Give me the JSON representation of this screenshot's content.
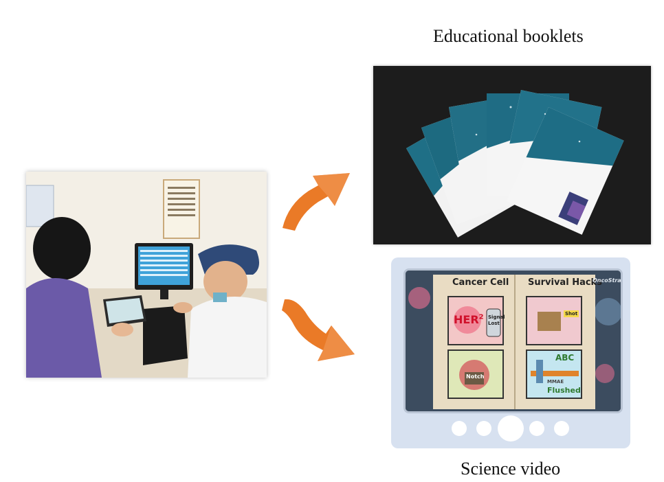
{
  "captions": {
    "booklets": "Educational booklets",
    "video": "Science video"
  },
  "video": {
    "left_page_title": "Cancer Cell",
    "right_page_title": "Survival Hacks",
    "panel_her": "HER",
    "panel_her_sup": "2",
    "panel_signal": "Signal",
    "panel_lost": "Lost",
    "panel_shot": "Shot",
    "panel_notch": "Notch",
    "panel_abc": "ABC",
    "panel_mmae": "MMAE",
    "panel_flushed": "Flushed",
    "watermark": "OncoStra"
  },
  "colors": {
    "arrow": "#ea7a27",
    "player_bg": "#d7e1f0",
    "booklet_teal": "#1f6f86"
  },
  "icons": [
    "curved-arrow-up-icon",
    "curved-arrow-down-icon",
    "play-dot-icon"
  ]
}
